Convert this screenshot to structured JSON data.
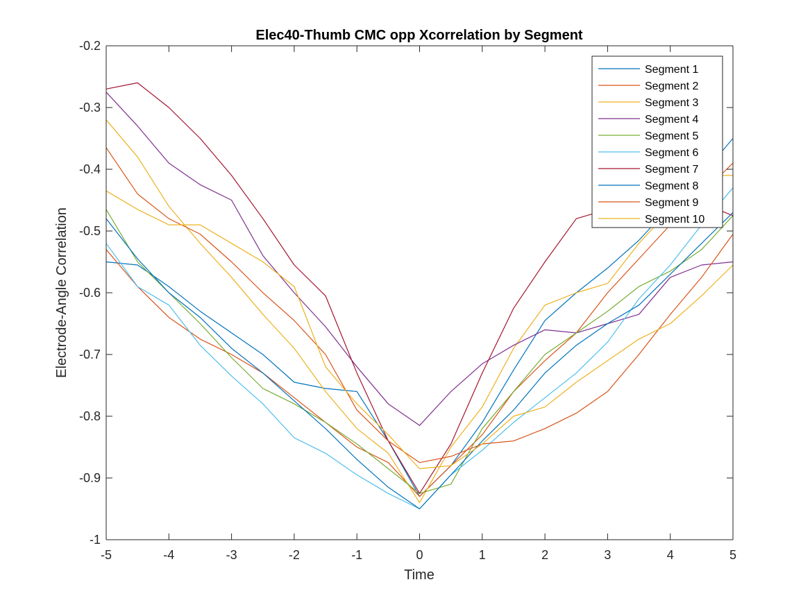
{
  "chart_data": {
    "type": "line",
    "title": "Elec40-Thumb CMC opp Xcorrelation by Segment",
    "xlabel": "Time",
    "ylabel": "Electrode-Angle Correlation",
    "xlim": [
      -5,
      5
    ],
    "ylim": [
      -1,
      -0.2
    ],
    "xticks": [
      -5,
      -4,
      -3,
      -2,
      -1,
      0,
      1,
      2,
      3,
      4,
      5
    ],
    "yticks": [
      -1,
      -0.9,
      -0.8,
      -0.7,
      -0.6,
      -0.5,
      -0.4,
      -0.3,
      -0.2
    ],
    "xtick_labels": [
      "-5",
      "-4",
      "-3",
      "-2",
      "-1",
      "0",
      "1",
      "2",
      "3",
      "4",
      "5"
    ],
    "ytick_labels": [
      "-1",
      "-0.9",
      "-0.8",
      "-0.7",
      "-0.6",
      "-0.5",
      "-0.4",
      "-0.3",
      "-0.2"
    ],
    "grid": false,
    "legend_position": "top-right",
    "x": [
      -5,
      -4.5,
      -4,
      -3.5,
      -3,
      -2.5,
      -2,
      -1.5,
      -1,
      -0.5,
      0,
      0.5,
      1,
      1.5,
      2,
      2.5,
      3,
      3.5,
      4,
      4.5,
      5
    ],
    "series": [
      {
        "name": "Segment 1",
        "color": "#0072BD",
        "values": [
          -0.55,
          -0.555,
          -0.59,
          -0.63,
          -0.665,
          -0.7,
          -0.745,
          -0.755,
          -0.76,
          -0.84,
          -0.93,
          -0.88,
          -0.81,
          -0.725,
          -0.645,
          -0.6,
          -0.56,
          -0.515,
          -0.46,
          -0.41,
          -0.35
        ]
      },
      {
        "name": "Segment 2",
        "color": "#D95319",
        "values": [
          -0.53,
          -0.59,
          -0.64,
          -0.675,
          -0.7,
          -0.73,
          -0.77,
          -0.81,
          -0.85,
          -0.875,
          -0.93,
          -0.88,
          -0.83,
          -0.76,
          -0.71,
          -0.665,
          -0.6,
          -0.545,
          -0.49,
          -0.44,
          -0.39
        ]
      },
      {
        "name": "Segment 3",
        "color": "#EDB120",
        "values": [
          -0.32,
          -0.38,
          -0.46,
          -0.52,
          -0.575,
          -0.635,
          -0.69,
          -0.76,
          -0.82,
          -0.86,
          -0.94,
          -0.85,
          -0.785,
          -0.69,
          -0.62,
          -0.6,
          -0.585,
          -0.52,
          -0.465,
          -0.41,
          -0.41
        ]
      },
      {
        "name": "Segment 4",
        "color": "#7E2F8E",
        "values": [
          -0.275,
          -0.33,
          -0.39,
          -0.425,
          -0.45,
          -0.54,
          -0.6,
          -0.655,
          -0.72,
          -0.78,
          -0.815,
          -0.76,
          -0.715,
          -0.685,
          -0.66,
          -0.665,
          -0.65,
          -0.635,
          -0.575,
          -0.555,
          -0.55
        ]
      },
      {
        "name": "Segment 5",
        "color": "#77AC30",
        "values": [
          -0.465,
          -0.55,
          -0.6,
          -0.65,
          -0.705,
          -0.755,
          -0.78,
          -0.81,
          -0.845,
          -0.885,
          -0.925,
          -0.91,
          -0.82,
          -0.76,
          -0.7,
          -0.665,
          -0.63,
          -0.59,
          -0.565,
          -0.53,
          -0.475
        ]
      },
      {
        "name": "Segment 6",
        "color": "#4DBEEE",
        "values": [
          -0.52,
          -0.59,
          -0.62,
          -0.685,
          -0.735,
          -0.78,
          -0.835,
          -0.86,
          -0.895,
          -0.925,
          -0.95,
          -0.895,
          -0.855,
          -0.81,
          -0.77,
          -0.73,
          -0.68,
          -0.61,
          -0.555,
          -0.49,
          -0.43
        ]
      },
      {
        "name": "Segment 7",
        "color": "#A2142F",
        "values": [
          -0.27,
          -0.26,
          -0.3,
          -0.35,
          -0.41,
          -0.48,
          -0.555,
          -0.605,
          -0.73,
          -0.84,
          -0.925,
          -0.845,
          -0.73,
          -0.625,
          -0.55,
          -0.48,
          -0.465,
          -0.455,
          -0.43,
          -0.455,
          -0.475
        ]
      },
      {
        "name": "Segment 8",
        "color": "#0072BD",
        "values": [
          -0.48,
          -0.545,
          -0.6,
          -0.64,
          -0.69,
          -0.73,
          -0.775,
          -0.82,
          -0.87,
          -0.915,
          -0.95,
          -0.895,
          -0.84,
          -0.79,
          -0.73,
          -0.685,
          -0.65,
          -0.62,
          -0.57,
          -0.52,
          -0.47
        ]
      },
      {
        "name": "Segment 9",
        "color": "#D95319",
        "values": [
          -0.365,
          -0.44,
          -0.48,
          -0.505,
          -0.55,
          -0.6,
          -0.645,
          -0.7,
          -0.79,
          -0.84,
          -0.875,
          -0.865,
          -0.845,
          -0.84,
          -0.82,
          -0.795,
          -0.76,
          -0.7,
          -0.635,
          -0.575,
          -0.505
        ]
      },
      {
        "name": "Segment 10",
        "color": "#EDB120",
        "values": [
          -0.435,
          -0.465,
          -0.49,
          -0.49,
          -0.52,
          -0.55,
          -0.59,
          -0.72,
          -0.78,
          -0.83,
          -0.885,
          -0.88,
          -0.845,
          -0.8,
          -0.785,
          -0.745,
          -0.71,
          -0.675,
          -0.65,
          -0.605,
          -0.555
        ]
      }
    ]
  }
}
